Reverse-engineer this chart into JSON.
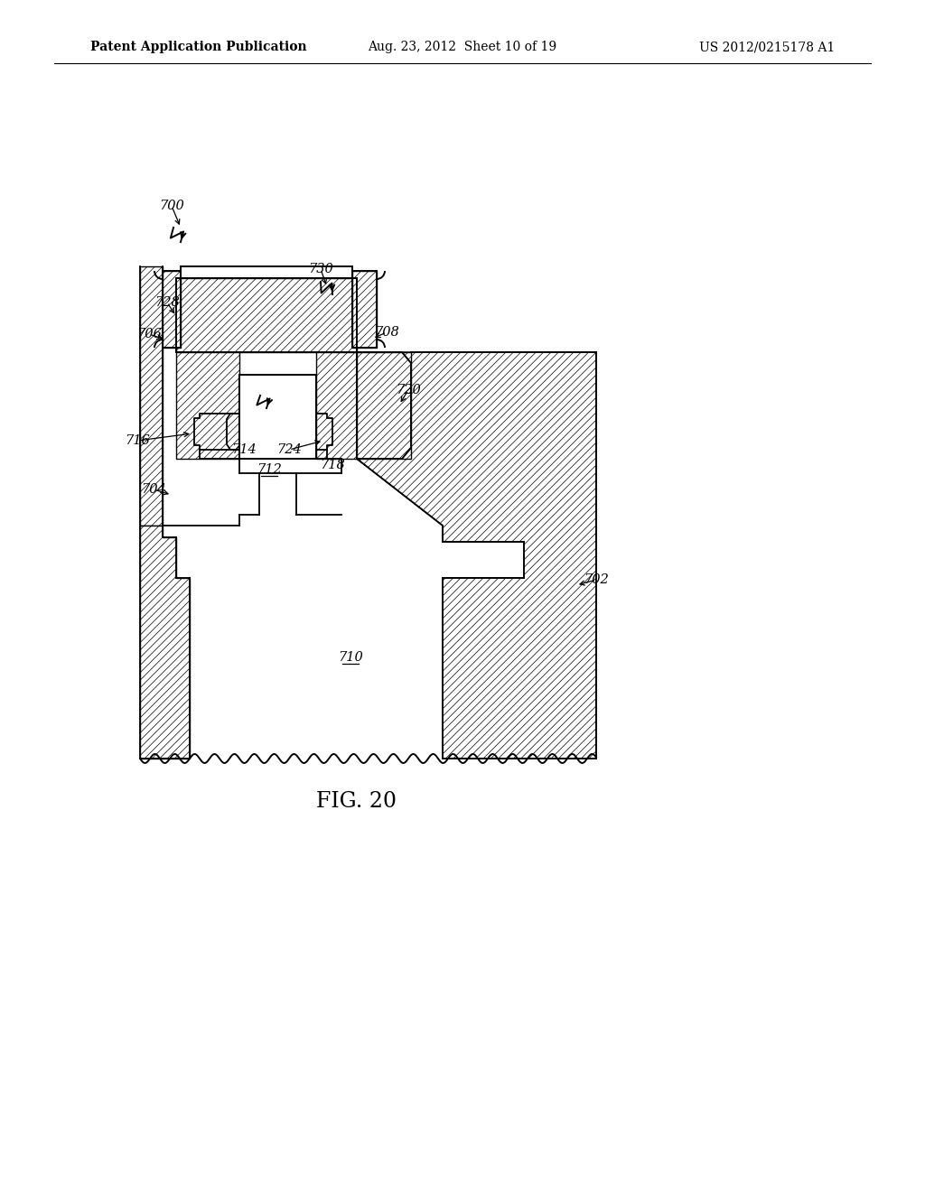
{
  "patent_header_left": "Patent Application Publication",
  "patent_header_mid": "Aug. 23, 2012  Sheet 10 of 19",
  "patent_header_right": "US 2012/0215178 A1",
  "fig_label": "FIG. 20",
  "background_color": "#ffffff",
  "header_font_size": 10,
  "label_font_size": 10.5,
  "fig_font_size": 17
}
